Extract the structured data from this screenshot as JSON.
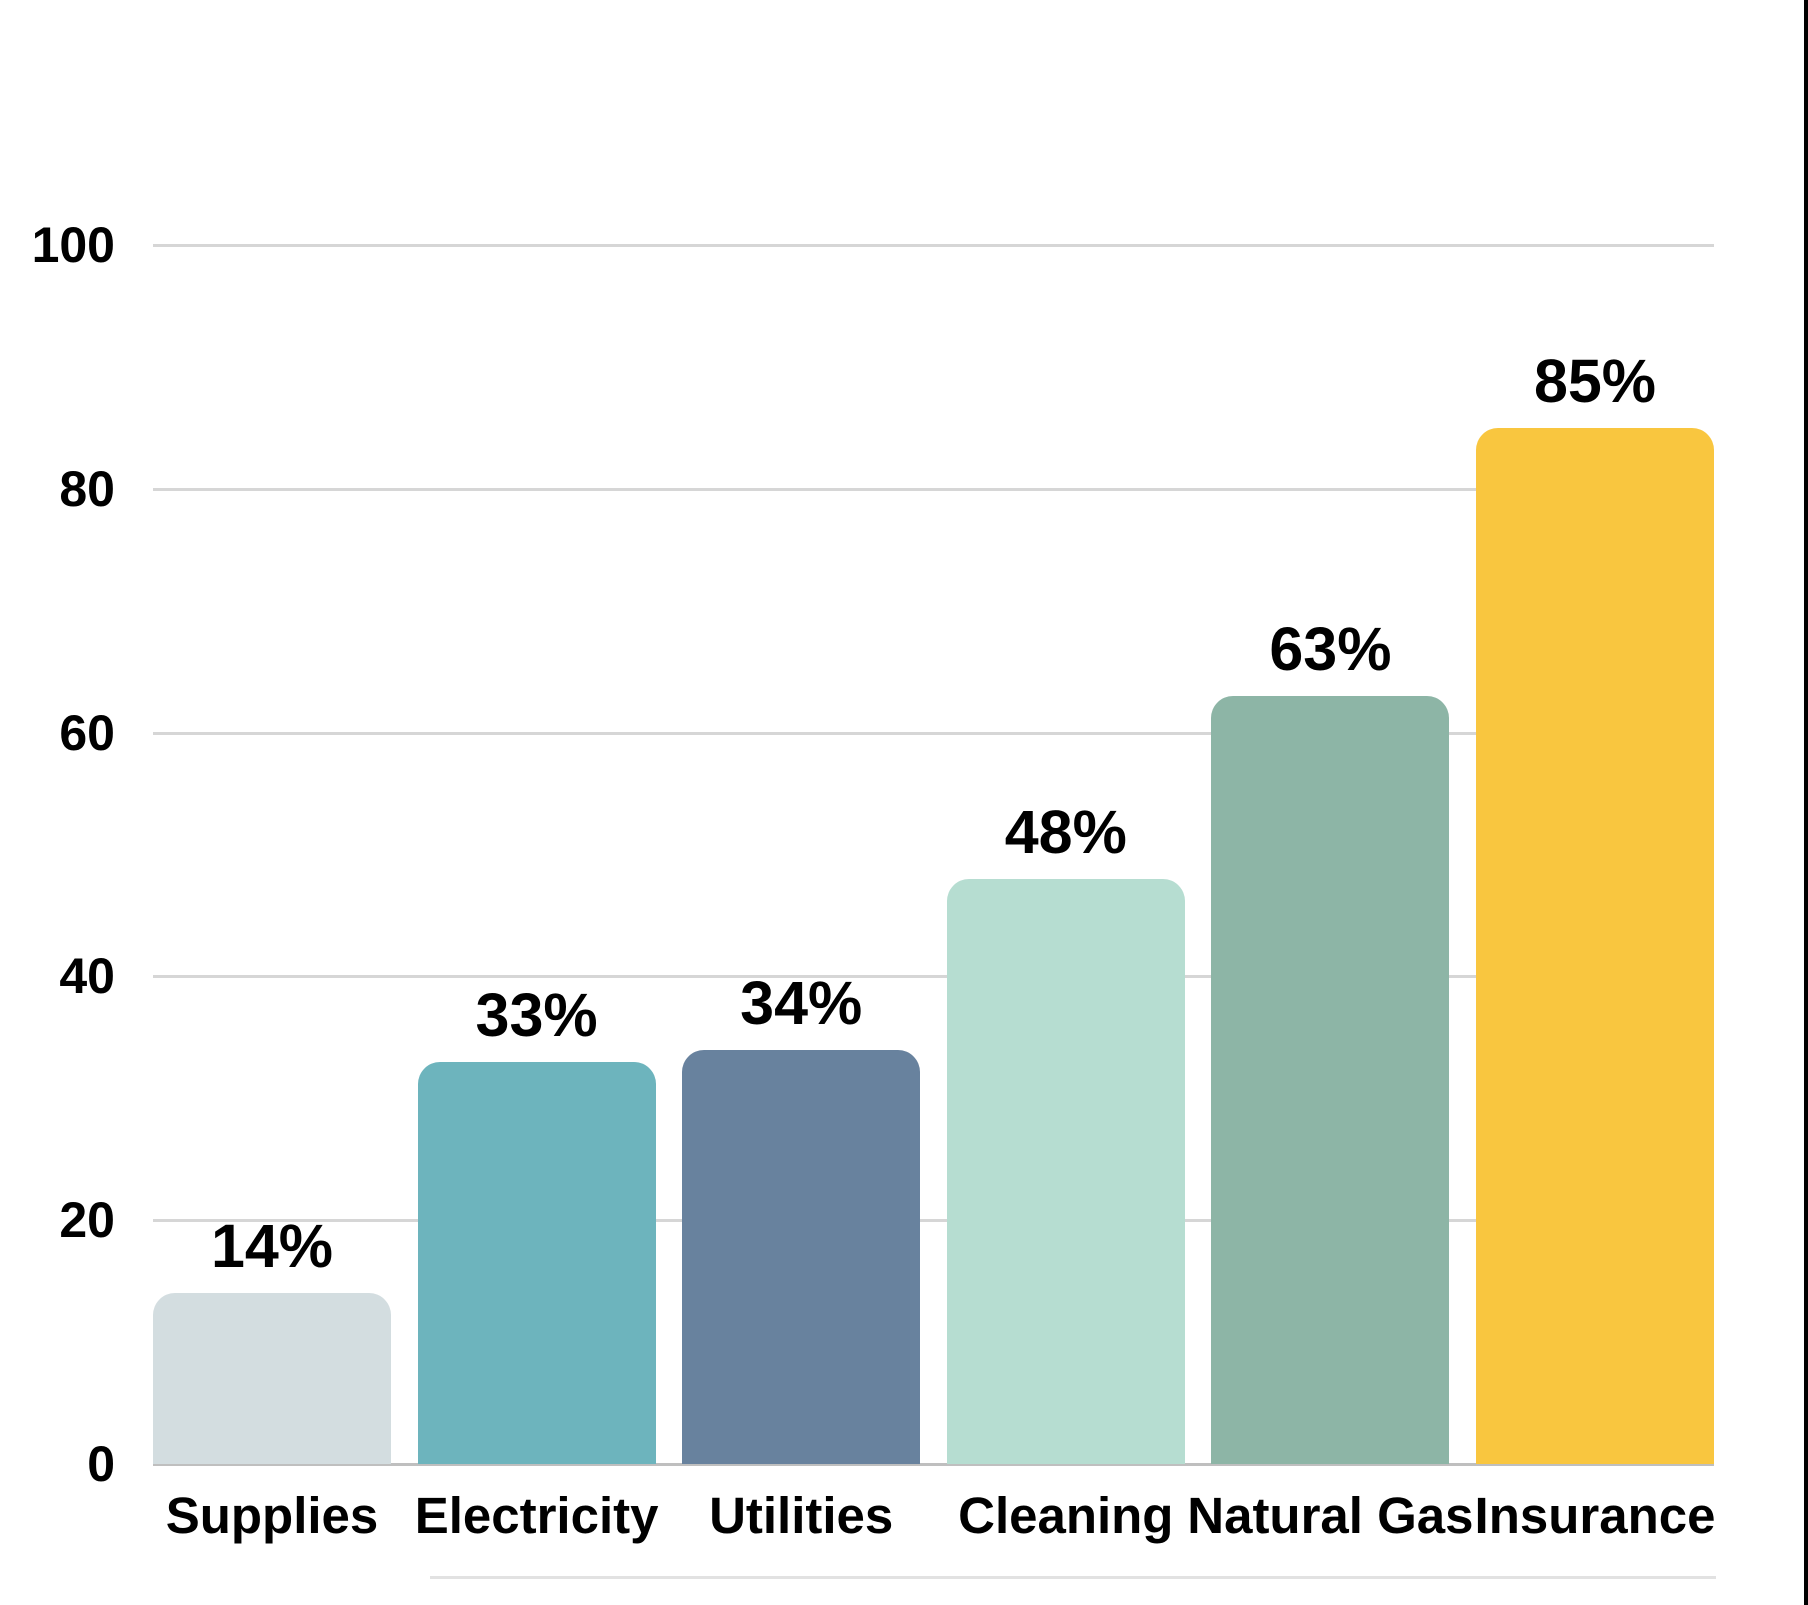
{
  "chart_data": {
    "type": "bar",
    "title": "",
    "xlabel": "",
    "ylabel": "",
    "categories": [
      "Supplies",
      "Electricity",
      "Utilities",
      "Cleaning",
      "Natural Gas",
      "Insurance"
    ],
    "values": [
      14,
      33,
      34,
      48,
      63,
      85
    ],
    "value_labels": [
      "14%",
      "33%",
      "34%",
      "48%",
      "63%",
      "85%"
    ],
    "bar_colors": [
      "#d3dde0",
      "#6db4bd",
      "#68829e",
      "#b6ddd1",
      "#8db5a6",
      "#f9c63f"
    ],
    "ylim": [
      0,
      100
    ],
    "yticks": [
      0,
      20,
      40,
      60,
      80,
      100
    ],
    "ytick_labels": [
      "0",
      "20",
      "40",
      "60",
      "80",
      "100"
    ],
    "grid": "horizontal",
    "legend": "none"
  },
  "styles": {
    "background": "#ffffff",
    "grid_color": "#d6d6d6",
    "axis_line_color": "#bfbfbf",
    "label_color": "#000000",
    "divider_color": "#e2e2e2",
    "right_border_color": "#000000"
  }
}
